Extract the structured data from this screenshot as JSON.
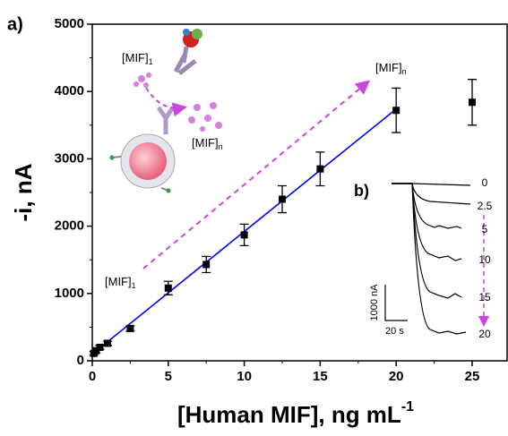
{
  "chart_data": {
    "type": "scatter",
    "panel_label": "a)",
    "inset_label": "b)",
    "x_label": {
      "text": "[Human MIF], ng mL",
      "sup": "-1"
    },
    "y_label": "-i, nA",
    "x": [
      0.1,
      0.25,
      0.5,
      1,
      2.5,
      5,
      7.5,
      10,
      12.5,
      15,
      20,
      25
    ],
    "values": [
      110,
      150,
      200,
      260,
      480,
      1080,
      1430,
      1870,
      2400,
      2850,
      3720,
      3840
    ],
    "errors": [
      30,
      30,
      30,
      30,
      40,
      100,
      120,
      160,
      200,
      250,
      330,
      340
    ],
    "color": "#000000",
    "fit": {
      "x": [
        0,
        20
      ],
      "y": [
        100,
        3740
      ],
      "color": "#0000ff"
    },
    "xlim": [
      0,
      27.3
    ],
    "ylim": [
      0,
      5000
    ],
    "xticks": [
      0,
      5,
      10,
      15,
      20,
      25
    ],
    "yticks": [
      0,
      1000,
      2000,
      3000,
      4000,
      5000
    ],
    "annotations": [
      {
        "text": "[MIF]",
        "sub": "1"
      },
      {
        "text": "[MIF]",
        "sub": "n"
      },
      {
        "text": "[MIF]",
        "sub": "n"
      },
      {
        "text": "[MIF]",
        "sub": "1"
      }
    ],
    "inset": {
      "concentrations": [
        "0",
        "2.5",
        "5",
        "10",
        "15",
        "20"
      ],
      "scale_y": "1000 nA",
      "scale_x": "20 s"
    }
  }
}
